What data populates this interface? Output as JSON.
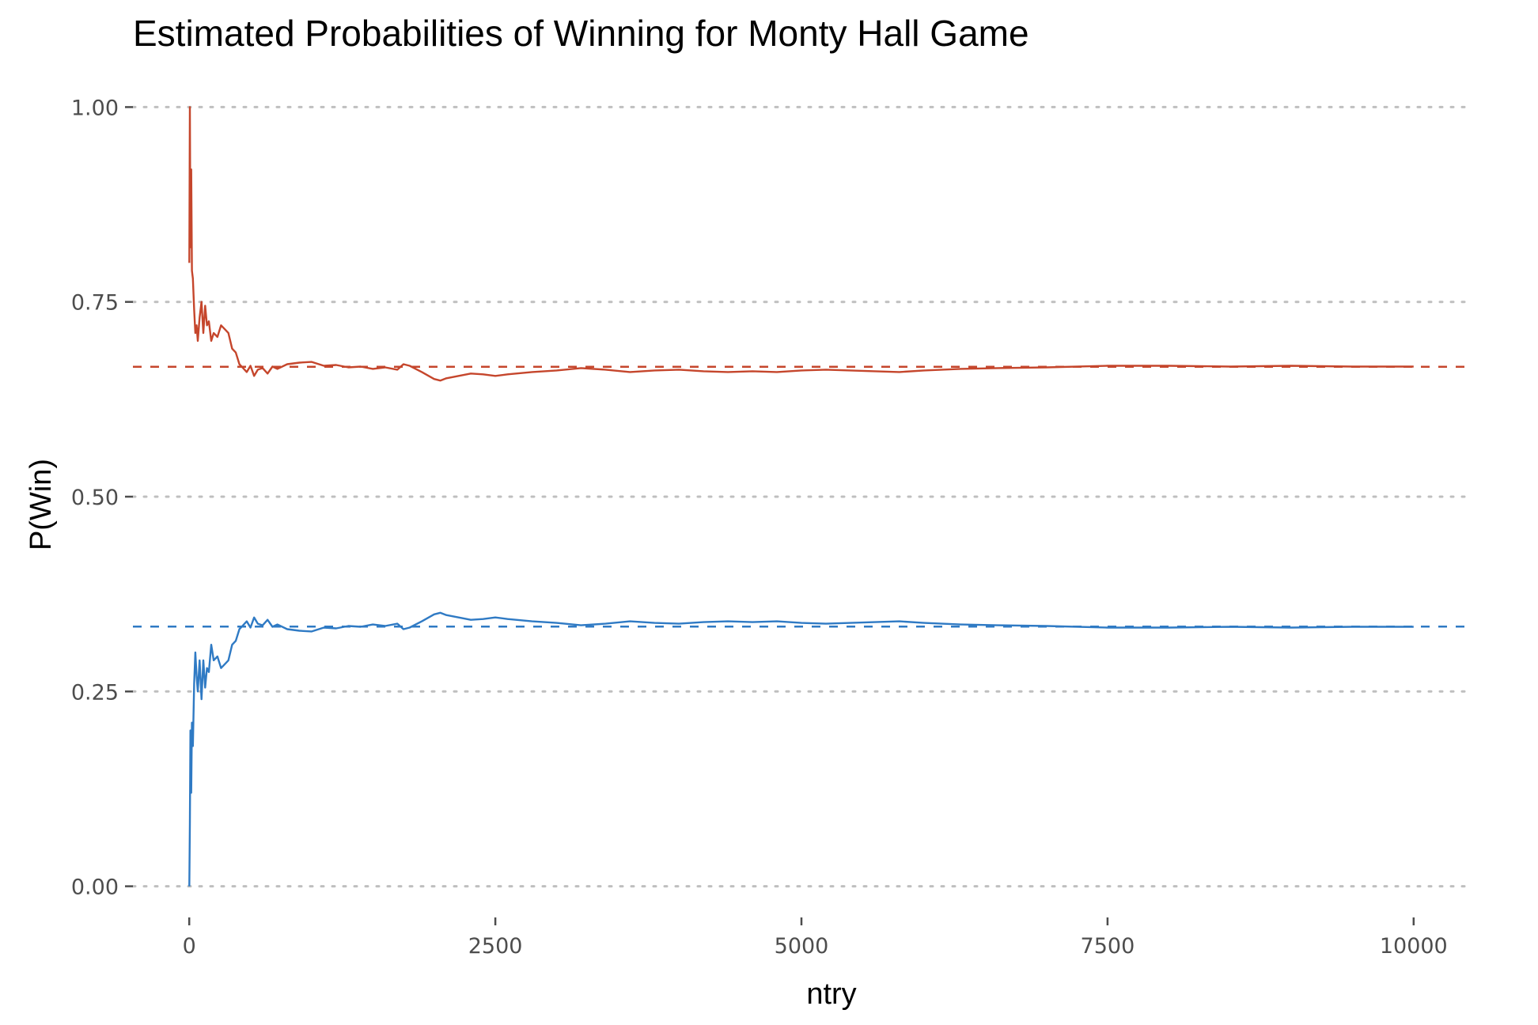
{
  "chart_data": {
    "type": "line",
    "title": "Estimated Probabilities of Winning for Monty Hall Game",
    "xlabel": "ntry",
    "ylabel": "P(Win)",
    "xlim": [
      -460,
      10460
    ],
    "ylim": [
      -0.04,
      1.04
    ],
    "x_ticks": [
      0,
      2500,
      5000,
      7500,
      10000
    ],
    "x_tick_labels": [
      "0",
      "2500",
      "5000",
      "7500",
      "10000"
    ],
    "y_ticks": [
      0,
      0.25,
      0.5,
      0.75,
      1
    ],
    "y_tick_labels": [
      "0.00",
      "0.25",
      "0.50",
      "0.75",
      "1.00"
    ],
    "grid": "horizontal dotted",
    "reference_lines": [
      {
        "y": 0.6667,
        "color": "#c5462c"
      },
      {
        "y": 0.3333,
        "color": "#2f7ac4"
      }
    ],
    "series": [
      {
        "color": "#c5462c",
        "points": [
          [
            1,
            0.8
          ],
          [
            5,
            1.0
          ],
          [
            10,
            0.82
          ],
          [
            16,
            0.92
          ],
          [
            22,
            0.79
          ],
          [
            30,
            0.78
          ],
          [
            40,
            0.74
          ],
          [
            50,
            0.71
          ],
          [
            60,
            0.72
          ],
          [
            70,
            0.7
          ],
          [
            85,
            0.73
          ],
          [
            100,
            0.75
          ],
          [
            115,
            0.71
          ],
          [
            130,
            0.745
          ],
          [
            145,
            0.72
          ],
          [
            160,
            0.725
          ],
          [
            180,
            0.7
          ],
          [
            200,
            0.71
          ],
          [
            230,
            0.705
          ],
          [
            260,
            0.72
          ],
          [
            290,
            0.715
          ],
          [
            320,
            0.71
          ],
          [
            350,
            0.69
          ],
          [
            380,
            0.685
          ],
          [
            410,
            0.67
          ],
          [
            440,
            0.665
          ],
          [
            470,
            0.66
          ],
          [
            500,
            0.668
          ],
          [
            530,
            0.655
          ],
          [
            560,
            0.663
          ],
          [
            600,
            0.665
          ],
          [
            640,
            0.658
          ],
          [
            680,
            0.667
          ],
          [
            720,
            0.664
          ],
          [
            800,
            0.67
          ],
          [
            900,
            0.672
          ],
          [
            1000,
            0.673
          ],
          [
            1100,
            0.668
          ],
          [
            1200,
            0.669
          ],
          [
            1300,
            0.666
          ],
          [
            1400,
            0.667
          ],
          [
            1500,
            0.664
          ],
          [
            1600,
            0.666
          ],
          [
            1700,
            0.663
          ],
          [
            1750,
            0.67
          ],
          [
            1800,
            0.668
          ],
          [
            1900,
            0.66
          ],
          [
            2000,
            0.651
          ],
          [
            2050,
            0.649
          ],
          [
            2100,
            0.652
          ],
          [
            2200,
            0.655
          ],
          [
            2300,
            0.658
          ],
          [
            2400,
            0.657
          ],
          [
            2500,
            0.655
          ],
          [
            2600,
            0.657
          ],
          [
            2800,
            0.66
          ],
          [
            3000,
            0.662
          ],
          [
            3200,
            0.665
          ],
          [
            3400,
            0.663
          ],
          [
            3600,
            0.66
          ],
          [
            3800,
            0.662
          ],
          [
            4000,
            0.663
          ],
          [
            4200,
            0.661
          ],
          [
            4400,
            0.66
          ],
          [
            4600,
            0.661
          ],
          [
            4800,
            0.66
          ],
          [
            5000,
            0.662
          ],
          [
            5200,
            0.663
          ],
          [
            5400,
            0.662
          ],
          [
            5600,
            0.661
          ],
          [
            5800,
            0.66
          ],
          [
            6000,
            0.662
          ],
          [
            6300,
            0.664
          ],
          [
            6600,
            0.665
          ],
          [
            7000,
            0.666
          ],
          [
            7500,
            0.668
          ],
          [
            8000,
            0.668
          ],
          [
            8500,
            0.667
          ],
          [
            9000,
            0.668
          ],
          [
            9500,
            0.667
          ],
          [
            10000,
            0.667
          ]
        ]
      },
      {
        "color": "#2f7ac4",
        "points": [
          [
            1,
            0.0
          ],
          [
            5,
            0.08
          ],
          [
            10,
            0.2
          ],
          [
            16,
            0.12
          ],
          [
            22,
            0.21
          ],
          [
            30,
            0.18
          ],
          [
            40,
            0.26
          ],
          [
            50,
            0.3
          ],
          [
            60,
            0.27
          ],
          [
            70,
            0.25
          ],
          [
            85,
            0.29
          ],
          [
            100,
            0.24
          ],
          [
            115,
            0.29
          ],
          [
            130,
            0.255
          ],
          [
            145,
            0.28
          ],
          [
            160,
            0.275
          ],
          [
            180,
            0.31
          ],
          [
            200,
            0.29
          ],
          [
            230,
            0.295
          ],
          [
            260,
            0.28
          ],
          [
            290,
            0.285
          ],
          [
            320,
            0.29
          ],
          [
            350,
            0.31
          ],
          [
            380,
            0.315
          ],
          [
            410,
            0.33
          ],
          [
            440,
            0.335
          ],
          [
            470,
            0.34
          ],
          [
            500,
            0.332
          ],
          [
            530,
            0.345
          ],
          [
            560,
            0.337
          ],
          [
            600,
            0.335
          ],
          [
            640,
            0.342
          ],
          [
            680,
            0.333
          ],
          [
            720,
            0.336
          ],
          [
            800,
            0.33
          ],
          [
            900,
            0.328
          ],
          [
            1000,
            0.327
          ],
          [
            1100,
            0.332
          ],
          [
            1200,
            0.331
          ],
          [
            1300,
            0.334
          ],
          [
            1400,
            0.333
          ],
          [
            1500,
            0.336
          ],
          [
            1600,
            0.334
          ],
          [
            1700,
            0.337
          ],
          [
            1750,
            0.33
          ],
          [
            1800,
            0.332
          ],
          [
            1900,
            0.34
          ],
          [
            2000,
            0.349
          ],
          [
            2050,
            0.351
          ],
          [
            2100,
            0.348
          ],
          [
            2200,
            0.345
          ],
          [
            2300,
            0.342
          ],
          [
            2400,
            0.343
          ],
          [
            2500,
            0.345
          ],
          [
            2600,
            0.343
          ],
          [
            2800,
            0.34
          ],
          [
            3000,
            0.338
          ],
          [
            3200,
            0.335
          ],
          [
            3400,
            0.337
          ],
          [
            3600,
            0.34
          ],
          [
            3800,
            0.338
          ],
          [
            4000,
            0.337
          ],
          [
            4200,
            0.339
          ],
          [
            4400,
            0.34
          ],
          [
            4600,
            0.339
          ],
          [
            4800,
            0.34
          ],
          [
            5000,
            0.338
          ],
          [
            5200,
            0.337
          ],
          [
            5400,
            0.338
          ],
          [
            5600,
            0.339
          ],
          [
            5800,
            0.34
          ],
          [
            6000,
            0.338
          ],
          [
            6300,
            0.336
          ],
          [
            6600,
            0.335
          ],
          [
            7000,
            0.334
          ],
          [
            7500,
            0.332
          ],
          [
            8000,
            0.332
          ],
          [
            8500,
            0.333
          ],
          [
            9000,
            0.332
          ],
          [
            9500,
            0.333
          ],
          [
            10000,
            0.333
          ]
        ]
      }
    ]
  }
}
